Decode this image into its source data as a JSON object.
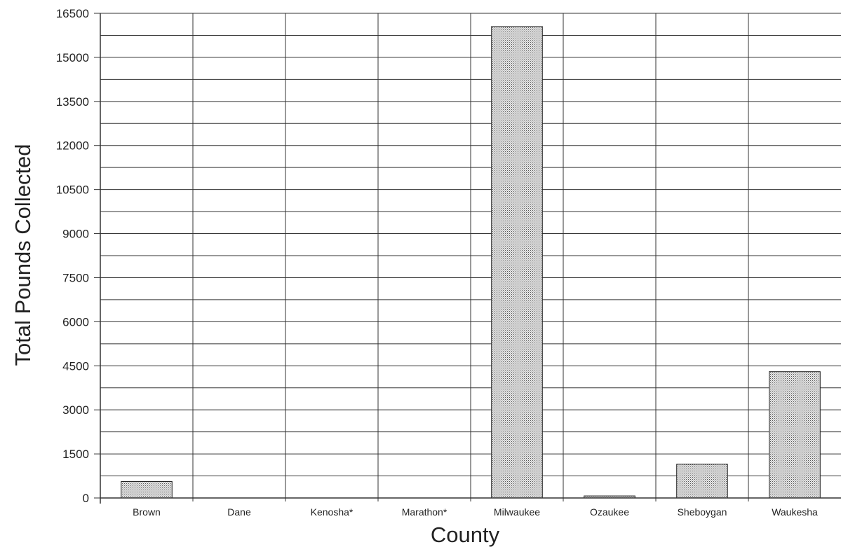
{
  "chart_data": {
    "type": "bar",
    "title": "",
    "xlabel": "County",
    "ylabel": "Total Pounds Collected",
    "categories": [
      "Brown",
      "Dane",
      "Kenosha*",
      "Marathon*",
      "Milwaukee",
      "Ozaukee",
      "Sheboygan",
      "Waukesha"
    ],
    "values": [
      560,
      0,
      0,
      0,
      16050,
      70,
      1150,
      4300
    ],
    "ylim": [
      0,
      16500
    ],
    "yticks": [
      0,
      1500,
      3000,
      4500,
      6000,
      7500,
      9000,
      10500,
      12000,
      13500,
      15000,
      16500
    ],
    "grid": true,
    "legend": "none",
    "bar_fill": "dotted gray pattern",
    "colors": {
      "grid": "#333333",
      "bar_fill": "#c8c8c8",
      "bar_edge": "#222222"
    }
  }
}
